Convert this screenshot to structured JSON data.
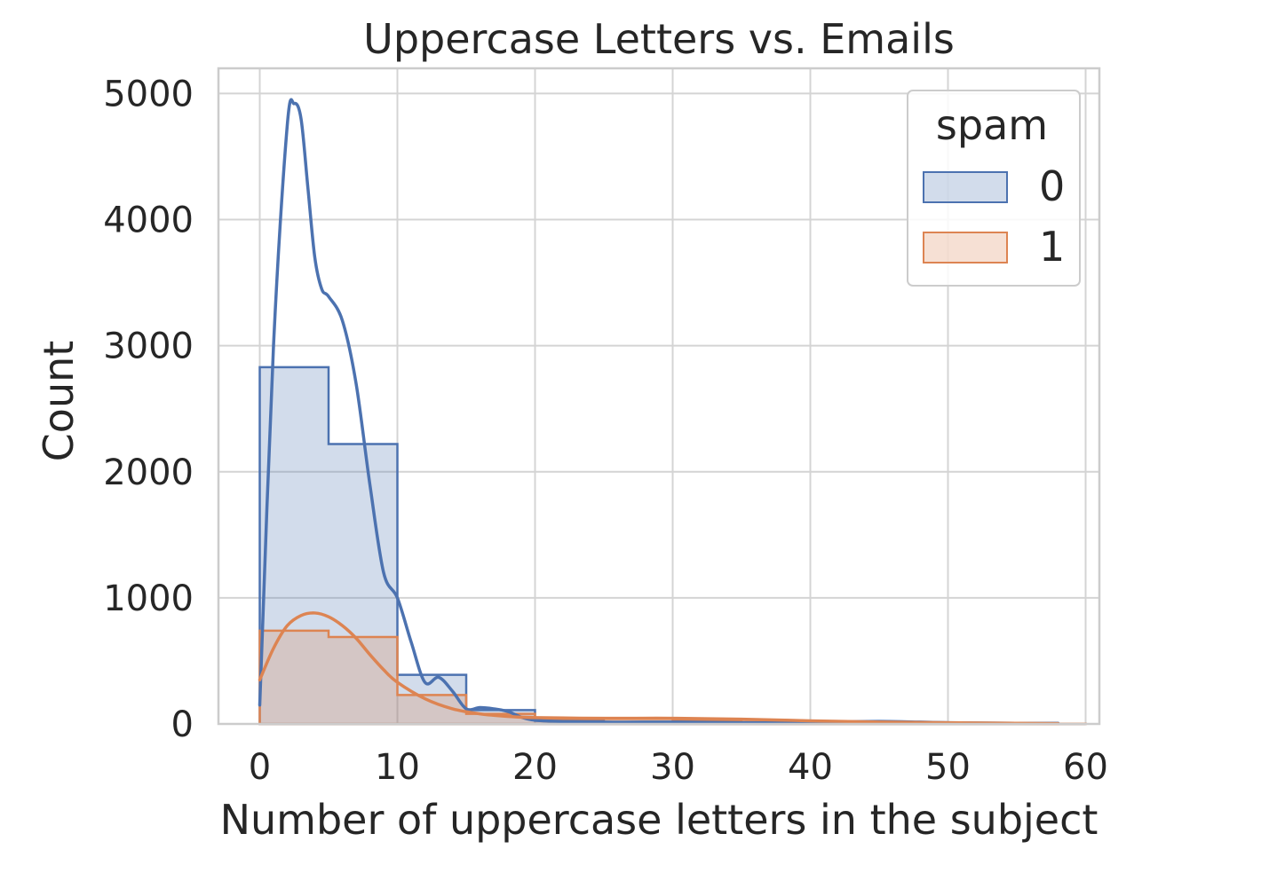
{
  "chart_data": {
    "type": "histogram",
    "title": "Uppercase Letters vs. Emails",
    "xlabel": "Number of uppercase letters in the subject",
    "ylabel": "Count",
    "xlim": [
      -3,
      61
    ],
    "ylim": [
      0,
      5200
    ],
    "xticks": [
      0,
      10,
      20,
      30,
      40,
      50,
      60
    ],
    "yticks": [
      0,
      1000,
      2000,
      3000,
      4000,
      5000
    ],
    "grid": true,
    "legend": {
      "title": "spam",
      "placement": "top-right"
    },
    "bin_edges": [
      0,
      5,
      10,
      15,
      20,
      25,
      30,
      35,
      40,
      45,
      50,
      55,
      60
    ],
    "series": [
      {
        "name": "0",
        "color": "#4c72b0",
        "counts": [
          2830,
          2220,
          390,
          110,
          25,
          15,
          8,
          5,
          3,
          2,
          1,
          0
        ],
        "kde": [
          [
            0,
            150
          ],
          [
            1,
            3000
          ],
          [
            2,
            4750
          ],
          [
            2.5,
            4920
          ],
          [
            3,
            4800
          ],
          [
            3.5,
            4250
          ],
          [
            4,
            3700
          ],
          [
            4.5,
            3450
          ],
          [
            5,
            3390
          ],
          [
            6,
            3200
          ],
          [
            7,
            2700
          ],
          [
            8,
            1900
          ],
          [
            9,
            1200
          ],
          [
            10,
            1000
          ],
          [
            11,
            650
          ],
          [
            12,
            330
          ],
          [
            13,
            370
          ],
          [
            14,
            260
          ],
          [
            15,
            120
          ],
          [
            16,
            130
          ],
          [
            17,
            120
          ],
          [
            18,
            100
          ],
          [
            20,
            30
          ],
          [
            25,
            15
          ],
          [
            30,
            15
          ],
          [
            35,
            10
          ],
          [
            40,
            10
          ],
          [
            45,
            20
          ],
          [
            50,
            10
          ],
          [
            55,
            5
          ],
          [
            58,
            5
          ]
        ]
      },
      {
        "name": "1",
        "color": "#dd8452",
        "counts": [
          740,
          690,
          230,
          80,
          40,
          40,
          30,
          15,
          8,
          5,
          3,
          2
        ],
        "kde": [
          [
            0,
            350
          ],
          [
            1,
            600
          ],
          [
            2,
            780
          ],
          [
            3,
            860
          ],
          [
            4,
            880
          ],
          [
            5,
            850
          ],
          [
            6,
            780
          ],
          [
            7,
            680
          ],
          [
            8,
            550
          ],
          [
            9,
            430
          ],
          [
            10,
            330
          ],
          [
            12,
            200
          ],
          [
            14,
            120
          ],
          [
            16,
            80
          ],
          [
            18,
            60
          ],
          [
            20,
            50
          ],
          [
            25,
            45
          ],
          [
            30,
            45
          ],
          [
            35,
            38
          ],
          [
            40,
            25
          ],
          [
            45,
            15
          ],
          [
            50,
            10
          ],
          [
            55,
            5
          ],
          [
            58,
            3
          ]
        ]
      }
    ]
  }
}
